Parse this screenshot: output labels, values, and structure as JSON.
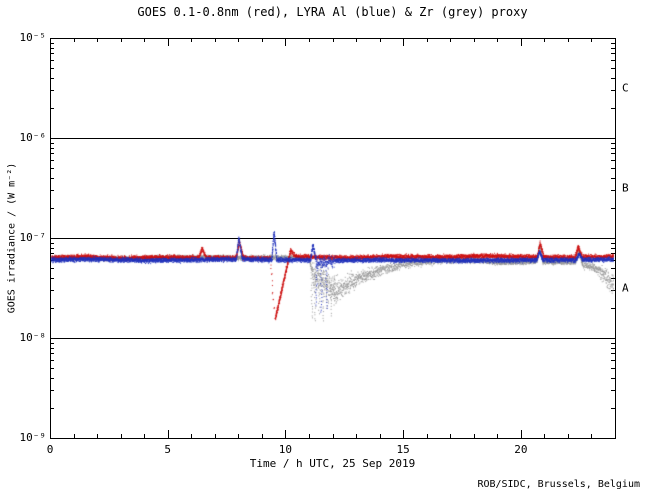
{
  "window": {
    "bg": "#ffffff",
    "fg": "#000000"
  },
  "footer": {
    "text": "ROB/SIDC, Brussels, Belgium"
  },
  "chart_data": {
    "type": "scatter",
    "title": "GOES 0.1-0.8nm (red), LYRA Al (blue) & Zr (grey) proxy",
    "xlabel": "Time / h UTC, 25 Sep 2019",
    "ylabel": "GOES irradiance / (W m⁻²)",
    "xlim": [
      0,
      24
    ],
    "ylim_log10": [
      -9,
      -5
    ],
    "x_major_ticks": [
      0,
      5,
      10,
      15,
      20
    ],
    "x_minor_step": 1,
    "y_ticks": [
      {
        "exp": -5,
        "label": "10⁻⁵"
      },
      {
        "exp": -6,
        "label": "10⁻⁶"
      },
      {
        "exp": -7,
        "label": "10⁻⁷"
      },
      {
        "exp": -8,
        "label": "10⁻⁸"
      },
      {
        "exp": -9,
        "label": "10⁻⁹"
      }
    ],
    "hlines_log10": [
      -6,
      -7,
      -8
    ],
    "flare_classes": [
      {
        "label": "C",
        "log10_center": -5.5
      },
      {
        "label": "B",
        "log10_center": -6.5
      },
      {
        "label": "A",
        "log10_center": -7.5
      }
    ],
    "series": [
      {
        "name": "LYRA Zr proxy",
        "color": "#9a9a9a",
        "segments": [
          [
            0.0,
            3.0,
            6.4e-08,
            6.3e-08
          ],
          [
            3.0,
            6.0,
            6.3e-08,
            6.5e-08
          ],
          [
            6.0,
            8.0,
            6.5e-08,
            6.4e-08
          ],
          [
            8.0,
            9.4,
            6.4e-08,
            6.5e-08
          ],
          [
            9.4,
            11.0,
            6.5e-08,
            6.3e-08
          ],
          [
            11.0,
            11.15,
            6.3e-08,
            4.6e-08,
            0.05,
            0.008
          ],
          [
            11.15,
            12.2,
            4.2e-08,
            3e-08,
            0.13,
            0.008
          ],
          [
            12.2,
            13.0,
            3e-08,
            3.9e-08,
            0.09,
            0.01
          ],
          [
            13.0,
            14.0,
            3.9e-08,
            4.8e-08,
            0.06,
            0.01
          ],
          [
            14.0,
            15.0,
            4.8e-08,
            5.5e-08,
            0.045,
            0.012
          ],
          [
            15.0,
            16.5,
            5.5e-08,
            6e-08,
            0.035,
            0.012
          ],
          [
            16.5,
            18.0,
            6e-08,
            6.1e-08,
            0.03,
            0.012
          ],
          [
            18.0,
            19.2,
            6.1e-08,
            5.7e-08
          ],
          [
            19.2,
            20.65,
            5.7e-08,
            5.9e-08
          ],
          [
            20.65,
            20.78,
            5.9e-08,
            8.4e-08,
            0.025,
            0.006
          ],
          [
            20.78,
            20.92,
            8.4e-08,
            5.8e-08,
            0.025,
            0.006
          ],
          [
            20.92,
            22.3,
            5.8e-08,
            5.8e-08
          ],
          [
            22.3,
            22.44,
            5.8e-08,
            7.4e-08,
            0.025,
            0.006
          ],
          [
            22.44,
            22.6,
            7.4e-08,
            5.6e-08,
            0.025,
            0.006
          ],
          [
            22.6,
            23.3,
            5.6e-08,
            4.8e-08,
            0.05,
            0.01
          ],
          [
            23.3,
            24.0,
            4.8e-08,
            3.3e-08,
            0.08,
            0.01
          ]
        ],
        "columns": [
          [
            11.1,
            1.6e-08,
            4.8e-08
          ],
          [
            11.25,
            1.5e-08,
            4.4e-08
          ],
          [
            11.42,
            1.8e-08,
            4.4e-08
          ],
          [
            11.58,
            1.5e-08,
            4.2e-08
          ],
          [
            11.75,
            2e-08,
            4.2e-08
          ],
          [
            11.9,
            1.7e-08,
            4e-08
          ],
          [
            12.05,
            2.2e-08,
            4e-08
          ]
        ]
      },
      {
        "name": "GOES 0.1-0.8nm",
        "color": "#cc1111",
        "segments": [
          [
            0.0,
            1.5,
            6.4e-08,
            6.6e-08
          ],
          [
            1.5,
            3.0,
            6.6e-08,
            6.3e-08
          ],
          [
            3.0,
            4.5,
            6.3e-08,
            6.5e-08
          ],
          [
            4.5,
            6.3,
            6.5e-08,
            6.4e-08
          ],
          [
            6.3,
            6.45,
            6.4e-08,
            7.8e-08,
            0.025,
            0.008
          ],
          [
            6.45,
            6.6,
            7.8e-08,
            6.4e-08,
            0.025,
            0.008
          ],
          [
            6.6,
            7.9,
            6.4e-08,
            6.4e-08
          ],
          [
            7.9,
            8.02,
            6.4e-08,
            9.3e-08,
            0.025,
            0.006
          ],
          [
            8.02,
            8.2,
            9.3e-08,
            6.4e-08,
            0.025,
            0.006
          ],
          [
            8.2,
            9.35,
            6.4e-08,
            6.3e-08
          ],
          [
            9.35,
            9.5,
            6.3e-08,
            2e-08,
            0.03,
            0.03
          ],
          [
            9.55,
            10.2,
            1.55e-08,
            7.6e-08,
            0.022,
            0.005
          ],
          [
            10.2,
            10.4,
            7.6e-08,
            6.6e-08,
            0.02,
            0.01
          ],
          [
            10.4,
            12.5,
            6.6e-08,
            6.4e-08
          ],
          [
            12.5,
            14.5,
            6.4e-08,
            6.6e-08
          ],
          [
            14.5,
            16.5,
            6.6e-08,
            6.5e-08
          ],
          [
            16.5,
            18.5,
            6.5e-08,
            6.7e-08
          ],
          [
            18.5,
            20.68,
            6.7e-08,
            6.5e-08
          ],
          [
            20.68,
            20.8,
            6.5e-08,
            9e-08,
            0.025,
            0.006
          ],
          [
            20.8,
            20.95,
            9e-08,
            6.5e-08,
            0.025,
            0.006
          ],
          [
            20.95,
            22.3,
            6.5e-08,
            6.5e-08
          ],
          [
            22.3,
            22.42,
            6.5e-08,
            8.2e-08,
            0.025,
            0.006
          ],
          [
            22.42,
            22.58,
            8.2e-08,
            6.5e-08,
            0.025,
            0.006
          ],
          [
            22.58,
            24.0,
            6.5e-08,
            6.6e-08
          ]
        ],
        "columns": []
      },
      {
        "name": "LYRA Al proxy",
        "color": "#2233bb",
        "segments": [
          [
            0.0,
            2.0,
            6.1e-08,
            6.2e-08
          ],
          [
            2.0,
            4.0,
            6.2e-08,
            6e-08
          ],
          [
            4.0,
            6.0,
            6e-08,
            6.1e-08
          ],
          [
            6.0,
            7.9,
            6.1e-08,
            6.2e-08
          ],
          [
            7.9,
            8.0,
            6.2e-08,
            1e-07,
            0.02,
            0.006
          ],
          [
            8.0,
            8.15,
            1e-07,
            6.2e-08,
            0.02,
            0.006
          ],
          [
            8.15,
            9.4,
            6.2e-08,
            6.1e-08
          ],
          [
            9.4,
            9.5,
            6.1e-08,
            1.15e-07,
            0.02,
            0.005
          ],
          [
            9.5,
            9.62,
            1.15e-07,
            6.1e-08,
            0.02,
            0.005
          ],
          [
            9.62,
            11.05,
            6.1e-08,
            6.1e-08
          ],
          [
            11.05,
            11.15,
            6.1e-08,
            8.8e-08,
            0.02,
            0.006
          ],
          [
            11.15,
            11.28,
            8.8e-08,
            6e-08,
            0.02,
            0.006
          ],
          [
            11.28,
            12.1,
            5.8e-08,
            5.9e-08,
            0.06,
            0.01
          ],
          [
            12.1,
            14.0,
            6e-08,
            6.1e-08
          ],
          [
            14.0,
            17.0,
            6.1e-08,
            6e-08
          ],
          [
            17.0,
            20.65,
            6e-08,
            6.1e-08
          ],
          [
            20.65,
            20.78,
            6.1e-08,
            7.3e-08,
            0.02,
            0.006
          ],
          [
            20.78,
            20.92,
            7.3e-08,
            6.1e-08,
            0.02,
            0.006
          ],
          [
            20.92,
            22.33,
            6.1e-08,
            6.1e-08
          ],
          [
            22.33,
            22.46,
            6.1e-08,
            7e-08,
            0.02,
            0.006
          ],
          [
            22.46,
            22.6,
            7e-08,
            6.1e-08,
            0.02,
            0.006
          ],
          [
            22.6,
            24.0,
            6.1e-08,
            6.2e-08
          ]
        ],
        "columns": [
          [
            11.3,
            2.2e-08,
            5.4e-08
          ],
          [
            11.5,
            1.8e-08,
            5.4e-08
          ],
          [
            11.72,
            2e-08,
            5.2e-08
          ]
        ]
      }
    ]
  }
}
